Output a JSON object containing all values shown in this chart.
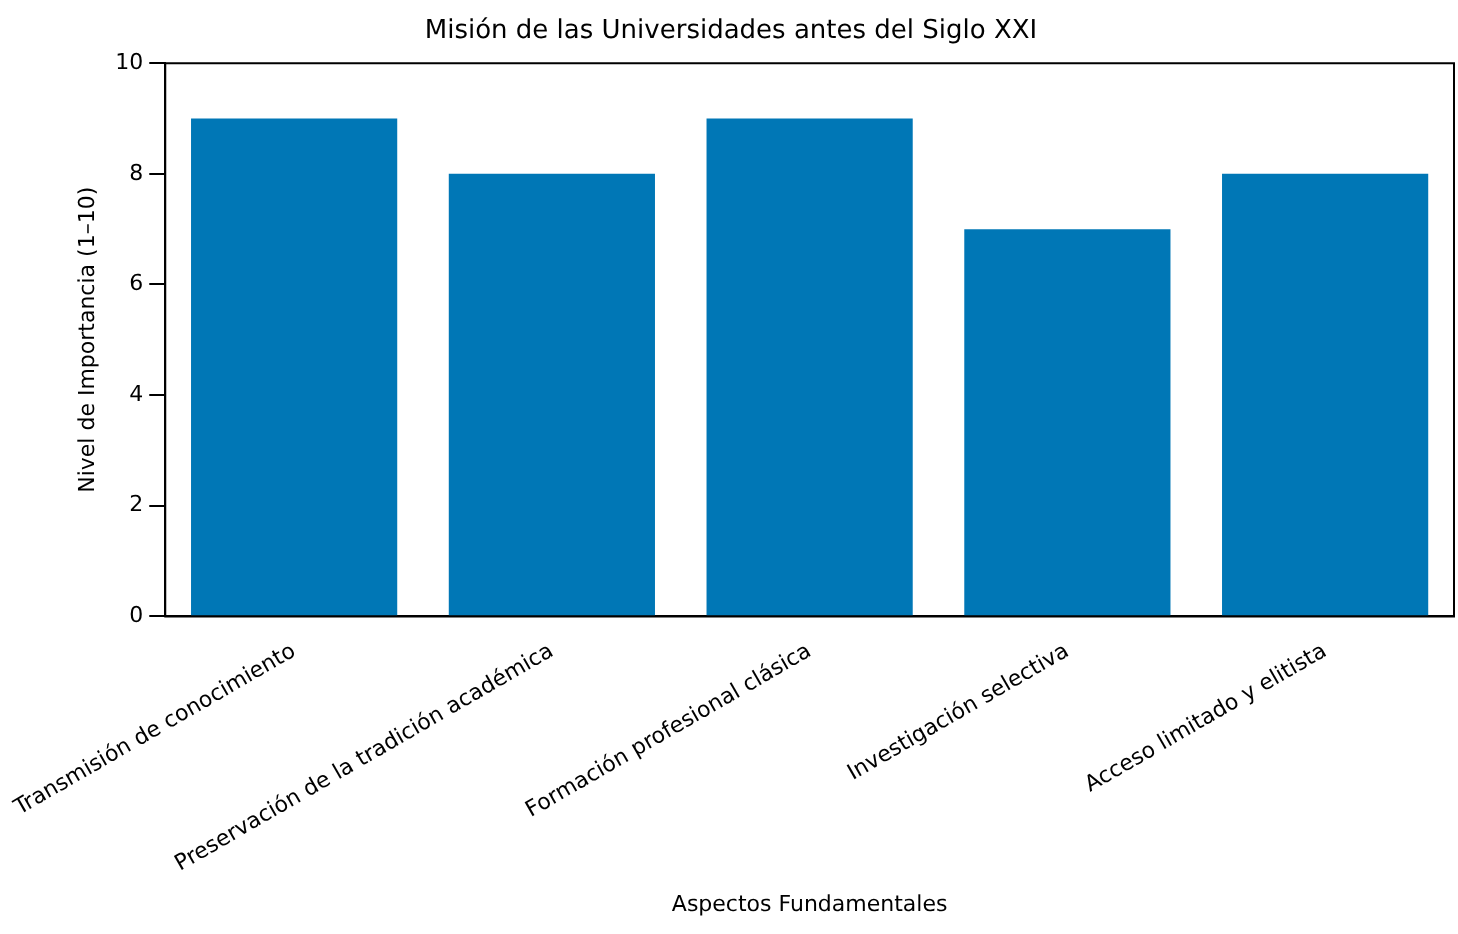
{
  "chart_data": {
    "type": "bar",
    "title": "Misión de las Universidades antes del Siglo XXI",
    "xlabel": "Aspectos Fundamentales",
    "ylabel": "Nivel de Importancia (1–10)",
    "categories": [
      "Transmisión de conocimiento",
      "Preservación de la tradición académica",
      "Formación profesional clásica",
      "Investigación selectiva",
      "Acceso limitado y elitista"
    ],
    "values": [
      9,
      8,
      9,
      7,
      8
    ],
    "color": "#0077b6",
    "ylim": [
      0,
      10
    ],
    "yticks": [
      0,
      2,
      4,
      6,
      8,
      10
    ],
    "grid": false,
    "legend": false
  }
}
